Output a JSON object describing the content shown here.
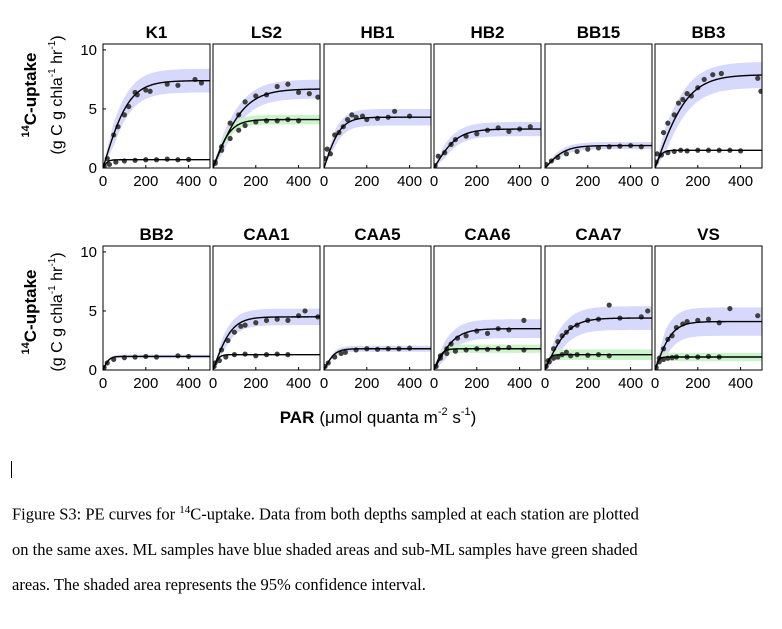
{
  "figure": {
    "xlabel_main": "PAR",
    "xlabel_unit": "(μmol quanta m",
    "xlabel_exp1": "-2",
    "xlabel_mid": " s",
    "xlabel_exp2": "-1",
    "xlabel_close": ")",
    "ylabel_line1_sup": "14",
    "ylabel_line1": "C-uptake",
    "ylabel_line2_pre": "(g C g chla",
    "ylabel_line2_sup1": "-1",
    "ylabel_line2_mid": " hr",
    "ylabel_line2_sup2": "-1",
    "ylabel_line2_post": ")",
    "xticks": [
      "0",
      "200",
      "400"
    ],
    "yticks": [
      "0",
      "5",
      "10"
    ]
  },
  "colors": {
    "ml_band": "#d6d9fb",
    "subml_band": "#c9f5c9",
    "curve": "#000000",
    "points": "#404040"
  },
  "chart_data": [
    {
      "type": "scatter",
      "title": "K1",
      "xlim": [
        0,
        500
      ],
      "ylim": [
        0,
        10.5
      ],
      "ml": {
        "pmax": 7.4,
        "alpha": 0.06,
        "ci": 1.0,
        "points": [
          [
            5,
            0.2
          ],
          [
            20,
            0.8
          ],
          [
            50,
            2.8
          ],
          [
            70,
            3.5
          ],
          [
            100,
            4.5
          ],
          [
            120,
            5.2
          ],
          [
            150,
            6.4
          ],
          [
            160,
            6.2
          ],
          [
            200,
            6.6
          ],
          [
            220,
            6.5
          ],
          [
            300,
            7.1
          ],
          [
            350,
            7.0
          ],
          [
            430,
            7.5
          ],
          [
            460,
            7.2
          ]
        ]
      },
      "sub": {
        "pmax": 0.7,
        "alpha": 0.03,
        "points": [
          [
            5,
            0.1
          ],
          [
            30,
            0.3
          ],
          [
            60,
            0.5
          ],
          [
            100,
            0.6
          ],
          [
            150,
            0.65
          ],
          [
            200,
            0.7
          ],
          [
            250,
            0.7
          ],
          [
            300,
            0.75
          ],
          [
            350,
            0.7
          ],
          [
            400,
            0.72
          ]
        ]
      }
    },
    {
      "type": "scatter",
      "title": "LS2",
      "xlim": [
        0,
        500
      ],
      "ylim": [
        0,
        10.5
      ],
      "ml": {
        "pmax": 6.7,
        "alpha": 0.045,
        "ci": 0.8,
        "points": [
          [
            10,
            0.5
          ],
          [
            40,
            1.8
          ],
          [
            80,
            3.8
          ],
          [
            120,
            4.5
          ],
          [
            150,
            5.6
          ],
          [
            200,
            6.1
          ],
          [
            250,
            6.2
          ],
          [
            300,
            6.9
          ],
          [
            350,
            7.1
          ],
          [
            400,
            6.4
          ],
          [
            450,
            6.3
          ],
          [
            490,
            6.0
          ]
        ]
      },
      "sub": {
        "pmax": 4.1,
        "alpha": 0.05,
        "ci": 0.4,
        "points": [
          [
            10,
            0.4
          ],
          [
            40,
            1.5
          ],
          [
            80,
            2.5
          ],
          [
            120,
            3.2
          ],
          [
            150,
            3.6
          ],
          [
            200,
            3.9
          ],
          [
            250,
            4.0
          ],
          [
            300,
            4.0
          ],
          [
            350,
            4.1
          ],
          [
            400,
            4.0
          ]
        ]
      }
    },
    {
      "type": "scatter",
      "title": "HB1",
      "xlim": [
        0,
        500
      ],
      "ylim": [
        0,
        10.5
      ],
      "ml": {
        "pmax": 4.3,
        "alpha": 0.055,
        "ci": 0.7,
        "points": [
          [
            5,
            0.8
          ],
          [
            15,
            1.6
          ],
          [
            30,
            1.2
          ],
          [
            50,
            2.8
          ],
          [
            70,
            3.0
          ],
          [
            90,
            3.5
          ],
          [
            110,
            4.1
          ],
          [
            130,
            4.5
          ],
          [
            150,
            4.3
          ],
          [
            180,
            4.4
          ],
          [
            200,
            4.1
          ],
          [
            250,
            4.2
          ],
          [
            300,
            4.3
          ],
          [
            330,
            4.8
          ],
          [
            400,
            4.4
          ]
        ]
      }
    },
    {
      "type": "scatter",
      "title": "HB2",
      "xlim": [
        0,
        500
      ],
      "ylim": [
        0,
        10.5
      ],
      "ml": {
        "pmax": 3.3,
        "alpha": 0.03,
        "ci": 0.6,
        "points": [
          [
            5,
            0.2
          ],
          [
            20,
            1.0
          ],
          [
            50,
            1.3
          ],
          [
            80,
            2.0
          ],
          [
            100,
            2.4
          ],
          [
            150,
            2.7
          ],
          [
            200,
            2.9
          ],
          [
            250,
            3.2
          ],
          [
            300,
            3.4
          ],
          [
            350,
            3.1
          ],
          [
            400,
            3.3
          ],
          [
            450,
            3.5
          ]
        ]
      }
    },
    {
      "type": "scatter",
      "title": "BB15",
      "xlim": [
        0,
        500
      ],
      "ylim": [
        0,
        10.5
      ],
      "ml": {
        "pmax": 1.9,
        "alpha": 0.02,
        "ci": 0.3,
        "points": [
          [
            5,
            0.3
          ],
          [
            30,
            0.6
          ],
          [
            60,
            0.9
          ],
          [
            100,
            1.2
          ],
          [
            150,
            1.4
          ],
          [
            200,
            1.6
          ],
          [
            250,
            1.7
          ],
          [
            300,
            1.8
          ],
          [
            350,
            1.85
          ],
          [
            400,
            1.9
          ],
          [
            450,
            1.8
          ]
        ]
      }
    },
    {
      "type": "scatter",
      "title": "BB3",
      "xlim": [
        0,
        500
      ],
      "ylim": [
        0,
        10.5
      ],
      "ml": {
        "pmax": 7.9,
        "alpha": 0.05,
        "ci": 1.1,
        "points": [
          [
            10,
            1.2
          ],
          [
            40,
            3.0
          ],
          [
            60,
            3.8
          ],
          [
            90,
            4.5
          ],
          [
            110,
            5.5
          ],
          [
            130,
            5.8
          ],
          [
            150,
            6.3
          ],
          [
            170,
            6.1
          ],
          [
            200,
            6.8
          ],
          [
            230,
            7.5
          ],
          [
            270,
            7.9
          ],
          [
            310,
            8.0
          ],
          [
            480,
            7.6
          ],
          [
            495,
            6.5
          ]
        ]
      },
      "sub": {
        "pmax": 1.5,
        "alpha": 0.05,
        "points": [
          [
            5,
            0.5
          ],
          [
            30,
            1.1
          ],
          [
            60,
            1.3
          ],
          [
            90,
            1.4
          ],
          [
            120,
            1.5
          ],
          [
            150,
            1.45
          ],
          [
            200,
            1.5
          ],
          [
            250,
            1.5
          ],
          [
            300,
            1.5
          ],
          [
            350,
            1.5
          ],
          [
            400,
            1.45
          ]
        ]
      }
    },
    {
      "type": "scatter",
      "title": "BB2",
      "xlim": [
        0,
        500
      ],
      "ylim": [
        0,
        10.5
      ],
      "ml": {
        "pmax": 1.15,
        "alpha": 0.04,
        "ci": 0.15,
        "points": [
          [
            5,
            0.2
          ],
          [
            20,
            0.6
          ],
          [
            50,
            0.9
          ],
          [
            100,
            1.05
          ],
          [
            150,
            1.1
          ],
          [
            200,
            1.15
          ],
          [
            250,
            1.1
          ],
          [
            350,
            1.2
          ],
          [
            400,
            1.15
          ]
        ]
      }
    },
    {
      "type": "scatter",
      "title": "CAA1",
      "xlim": [
        0,
        500
      ],
      "ylim": [
        0,
        10.5
      ],
      "ml": {
        "pmax": 4.5,
        "alpha": 0.05,
        "ci": 0.7,
        "points": [
          [
            10,
            0.6
          ],
          [
            40,
            1.7
          ],
          [
            70,
            2.5
          ],
          [
            100,
            3.2
          ],
          [
            130,
            3.7
          ],
          [
            150,
            3.8
          ],
          [
            200,
            4.0
          ],
          [
            250,
            4.2
          ],
          [
            300,
            4.3
          ],
          [
            350,
            4.2
          ],
          [
            400,
            4.6
          ],
          [
            430,
            5.0
          ],
          [
            490,
            4.5
          ]
        ]
      },
      "sub": {
        "pmax": 1.3,
        "alpha": 0.05,
        "points": [
          [
            5,
            0.3
          ],
          [
            30,
            0.8
          ],
          [
            60,
            1.1
          ],
          [
            100,
            1.3
          ],
          [
            150,
            1.35
          ],
          [
            200,
            1.2
          ],
          [
            250,
            1.3
          ],
          [
            300,
            1.35
          ],
          [
            350,
            1.3
          ]
        ]
      }
    },
    {
      "type": "scatter",
      "title": "CAA5",
      "xlim": [
        0,
        500
      ],
      "ylim": [
        0,
        10.5
      ],
      "ml": {
        "pmax": 1.8,
        "alpha": 0.035,
        "ci": 0.25,
        "points": [
          [
            5,
            0.3
          ],
          [
            20,
            0.6
          ],
          [
            50,
            1.1
          ],
          [
            80,
            1.4
          ],
          [
            100,
            1.5
          ],
          [
            150,
            1.7
          ],
          [
            200,
            1.8
          ],
          [
            250,
            1.75
          ],
          [
            300,
            1.8
          ],
          [
            350,
            1.8
          ],
          [
            400,
            1.85
          ]
        ]
      }
    },
    {
      "type": "scatter",
      "title": "CAA6",
      "xlim": [
        0,
        500
      ],
      "ylim": [
        0,
        10.5
      ],
      "ml": {
        "pmax": 3.5,
        "alpha": 0.035,
        "ci": 0.8,
        "points": [
          [
            10,
            0.3
          ],
          [
            30,
            1.2
          ],
          [
            60,
            1.8
          ],
          [
            80,
            2.2
          ],
          [
            110,
            2.7
          ],
          [
            150,
            2.9
          ],
          [
            200,
            3.3
          ],
          [
            250,
            3.1
          ],
          [
            300,
            3.5
          ],
          [
            350,
            3.4
          ],
          [
            420,
            4.2
          ]
        ]
      },
      "sub": {
        "pmax": 1.8,
        "alpha": 0.05,
        "ci": 0.35,
        "points": [
          [
            5,
            0.3
          ],
          [
            30,
            1.0
          ],
          [
            60,
            1.4
          ],
          [
            100,
            1.6
          ],
          [
            150,
            1.7
          ],
          [
            200,
            1.8
          ],
          [
            250,
            1.75
          ],
          [
            300,
            1.8
          ],
          [
            350,
            1.9
          ],
          [
            420,
            1.7
          ]
        ]
      }
    },
    {
      "type": "scatter",
      "title": "CAA7",
      "xlim": [
        0,
        500
      ],
      "ylim": [
        0,
        10.5
      ],
      "ml": {
        "pmax": 4.4,
        "alpha": 0.04,
        "ci": 1.0,
        "points": [
          [
            5,
            0.3
          ],
          [
            15,
            0.8
          ],
          [
            40,
            1.8
          ],
          [
            60,
            2.4
          ],
          [
            80,
            2.9
          ],
          [
            100,
            3.2
          ],
          [
            120,
            3.6
          ],
          [
            150,
            3.8
          ],
          [
            200,
            4.2
          ],
          [
            250,
            4.3
          ],
          [
            300,
            5.5
          ],
          [
            350,
            4.4
          ],
          [
            450,
            4.5
          ],
          [
            480,
            5.0
          ]
        ]
      },
      "sub": {
        "pmax": 1.3,
        "alpha": 0.06,
        "ci": 0.45,
        "points": [
          [
            5,
            0.3
          ],
          [
            20,
            0.7
          ],
          [
            40,
            1.0
          ],
          [
            60,
            1.1
          ],
          [
            80,
            1.3
          ],
          [
            100,
            1.5
          ],
          [
            120,
            1.2
          ],
          [
            150,
            1.3
          ],
          [
            200,
            1.25
          ],
          [
            250,
            1.3
          ],
          [
            300,
            1.2
          ]
        ]
      }
    },
    {
      "type": "scatter",
      "title": "VS",
      "xlim": [
        0,
        500
      ],
      "ylim": [
        0,
        10.5
      ],
      "ml": {
        "pmax": 4.1,
        "alpha": 0.05,
        "ci": 1.2,
        "points": [
          [
            5,
            0.2
          ],
          [
            20,
            1.0
          ],
          [
            40,
            1.8
          ],
          [
            60,
            2.6
          ],
          [
            80,
            2.9
          ],
          [
            100,
            3.6
          ],
          [
            130,
            3.9
          ],
          [
            150,
            4.1
          ],
          [
            200,
            4.2
          ],
          [
            250,
            4.3
          ],
          [
            300,
            4.0
          ],
          [
            350,
            5.2
          ],
          [
            480,
            4.6
          ]
        ]
      },
      "sub": {
        "pmax": 1.1,
        "alpha": 0.06,
        "ci": 0.35,
        "points": [
          [
            5,
            0.2
          ],
          [
            20,
            0.7
          ],
          [
            40,
            0.9
          ],
          [
            60,
            1.0
          ],
          [
            80,
            1.05
          ],
          [
            100,
            1.1
          ],
          [
            150,
            1.1
          ],
          [
            200,
            1.1
          ],
          [
            250,
            1.15
          ],
          [
            300,
            1.1
          ]
        ]
      }
    }
  ],
  "caption": {
    "line1_pre": "Figure S3: PE curves for ",
    "line1_sup": "14",
    "line1_post": "C-uptake. Data from both depths sampled at each station are plotted",
    "line2": "on the same axes. ML samples have blue shaded areas and sub-ML samples have green shaded",
    "line3": "areas. The shaded area represents the 95% confidence interval."
  }
}
